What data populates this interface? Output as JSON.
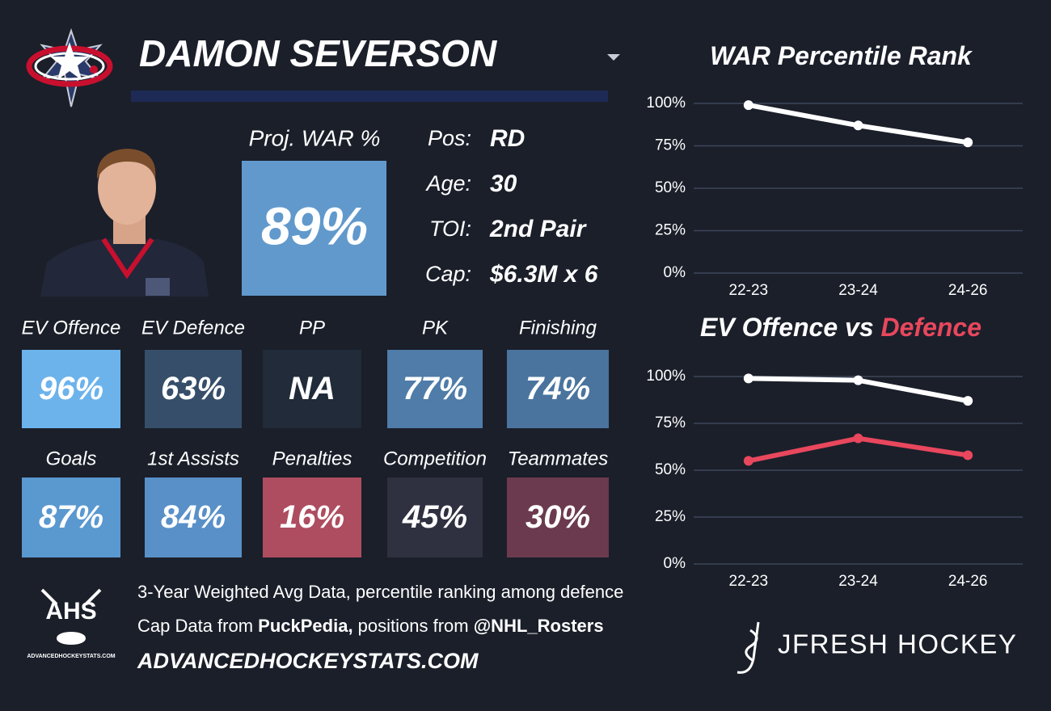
{
  "header": {
    "name": "DAMON SEVERSON"
  },
  "projection": {
    "label": "Proj. WAR %",
    "value": "89%",
    "color": "#6199cc"
  },
  "profile": [
    {
      "label": "Pos:",
      "value": "RD"
    },
    {
      "label": "Age:",
      "value": "30"
    },
    {
      "label": "TOI:",
      "value": "2nd Pair"
    },
    {
      "label": "Cap:",
      "value": "$6.3M x 6"
    }
  ],
  "tiles": [
    [
      {
        "label": "EV Offence",
        "value": "96%",
        "color": "#6cb3ec"
      },
      {
        "label": "EV Defence",
        "value": "63%",
        "color": "#364e69"
      },
      {
        "label": "PP",
        "value": "NA",
        "color": "#212b3a"
      },
      {
        "label": "PK",
        "value": "77%",
        "color": "#4f7ca8"
      },
      {
        "label": "Finishing",
        "value": "74%",
        "color": "#4a749e"
      }
    ],
    [
      {
        "label": "Goals",
        "value": "87%",
        "color": "#5a98d0"
      },
      {
        "label": "1st Assists",
        "value": "84%",
        "color": "#5990c8"
      },
      {
        "label": "Penalties",
        "value": "16%",
        "color": "#ae4d60"
      },
      {
        "label": "Competition",
        "value": "45%",
        "color": "#2f3040"
      },
      {
        "label": "Teammates",
        "value": "30%",
        "color": "#6b3a4e"
      }
    ]
  ],
  "notes": [
    [
      {
        "text": "3-Year Weighted Avg Data, percentile ranking among defence",
        "bold": false
      }
    ],
    [
      {
        "text": "Cap Data from ",
        "bold": false
      },
      {
        "text": "PuckPedia,",
        "bold": true
      },
      {
        "text": " positions from ",
        "bold": false
      },
      {
        "text": "@NHL_Rosters",
        "bold": true
      }
    ]
  ],
  "site": "ADVANCEDHOCKEYSTATS.COM",
  "logo": {
    "text": "AHS",
    "caption": "ADVANCEDHOCKEYSTATS.COM"
  },
  "brand": "JFRESH HOCKEY",
  "chart_data": [
    {
      "type": "line",
      "title": "WAR Percentile Rank",
      "categories": [
        "22-23",
        "23-24",
        "24-26"
      ],
      "series": [
        {
          "color": "#ffffff",
          "values": [
            99,
            87,
            77
          ]
        }
      ],
      "ylim": [
        0,
        100
      ],
      "yticks": [
        {
          "value": 0,
          "label": "0%"
        },
        {
          "value": 25,
          "label": "25%"
        },
        {
          "value": 50,
          "label": "50%"
        },
        {
          "value": 75,
          "label": "75%"
        },
        {
          "value": 100,
          "label": "100%"
        }
      ],
      "grid": true
    },
    {
      "type": "line",
      "title": "EV Offence vs",
      "title_accent": "Defence",
      "title_accent_color": "#e8475d",
      "categories": [
        "22-23",
        "23-24",
        "24-26"
      ],
      "series": [
        {
          "color": "#ffffff",
          "values": [
            99,
            98,
            87
          ]
        },
        {
          "color": "#e8475d",
          "values": [
            55,
            67,
            58
          ]
        }
      ],
      "ylim": [
        0,
        100
      ],
      "yticks": [
        {
          "value": 0,
          "label": "0%"
        },
        {
          "value": 25,
          "label": "25%"
        },
        {
          "value": 50,
          "label": "50%"
        },
        {
          "value": 75,
          "label": "75%"
        },
        {
          "value": 100,
          "label": "100%"
        }
      ],
      "grid": true
    }
  ]
}
